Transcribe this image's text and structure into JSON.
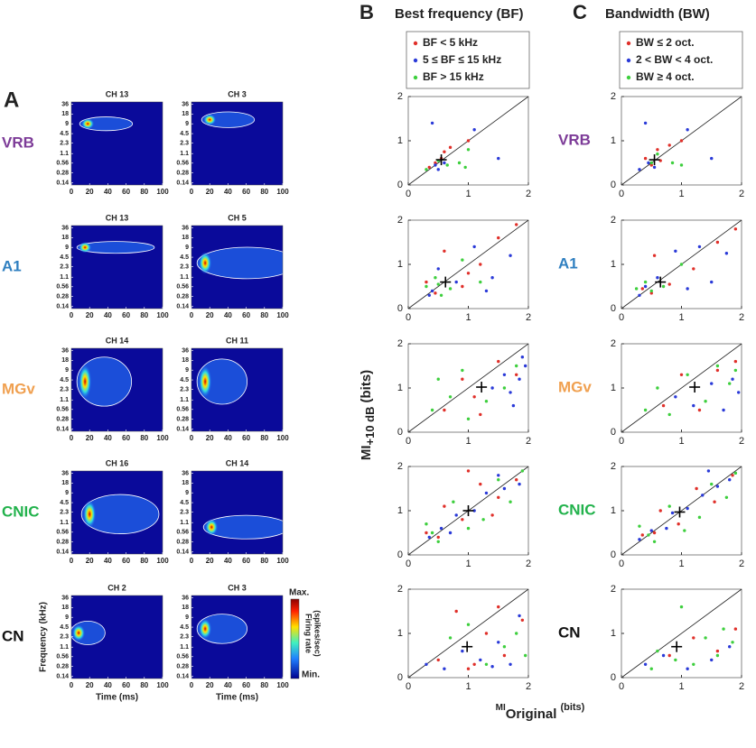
{
  "panel_labels": [
    "A",
    "B",
    "C"
  ],
  "axis_labels": {
    "y": {
      "main": "MI",
      "sub": "+10 dB",
      "unit": "(bits)"
    },
    "x": {
      "pre": "MI",
      "main": "Original",
      "unit": "(bits)"
    }
  },
  "panel_a": {
    "ylabel": "Frequency (kHz)",
    "xlabel": "Time (ms)",
    "xlim": [
      0,
      100
    ],
    "xticks": [
      0,
      20,
      40,
      60,
      80,
      100
    ],
    "ylim": [
      0.12,
      42
    ],
    "yticks": [
      36,
      18,
      9,
      4.5,
      2.3,
      1.1,
      0.56,
      0.28,
      0.14
    ],
    "colorbar": {
      "max": "Max.",
      "min": "Min.",
      "label": [
        "Firing rate",
        "(spikes/sec)"
      ]
    },
    "rows": [
      {
        "region": "VRB",
        "color": "#7d3c98",
        "maps": [
          {
            "title": "CH 13",
            "peak_time": 18,
            "peak_freq": 9,
            "time_extent": 12,
            "freq_extent": 0.7
          },
          {
            "title": "CH 3",
            "peak_time": 20,
            "peak_freq": 12,
            "time_extent": 8,
            "freq_extent": 0.8
          }
        ]
      },
      {
        "region": "A1",
        "color": "#2f7fc0",
        "maps": [
          {
            "title": "CH 13",
            "peak_time": 15,
            "peak_freq": 9,
            "time_extent": 45,
            "freq_extent": 0.6
          },
          {
            "title": "CH 5",
            "peak_time": 15,
            "peak_freq": 3,
            "time_extent": 70,
            "freq_extent": 1.6
          }
        ]
      },
      {
        "region": "MGv",
        "color": "#f0a050",
        "maps": [
          {
            "title": "CH 14",
            "peak_time": 15,
            "peak_freq": 4,
            "time_extent": 20,
            "freq_extent": 2.5
          },
          {
            "title": "CH 11",
            "peak_time": 15,
            "peak_freq": 4,
            "time_extent": 15,
            "freq_extent": 2.3
          }
        ]
      },
      {
        "region": "CNIC",
        "color": "#22b24c",
        "maps": [
          {
            "title": "CH 16",
            "peak_time": 20,
            "peak_freq": 2,
            "time_extent": 35,
            "freq_extent": 2
          },
          {
            "title": "CH 14",
            "peak_time": 22,
            "peak_freq": 0.8,
            "time_extent": 40,
            "freq_extent": 1.2
          }
        ]
      },
      {
        "region": "CN",
        "color": "#111111",
        "maps": [
          {
            "title": "CH 2",
            "peak_time": 8,
            "peak_freq": 3,
            "time_extent": 12,
            "freq_extent": 1.2
          },
          {
            "title": "CH 3",
            "peak_time": 15,
            "peak_freq": 4,
            "time_extent": 15,
            "freq_extent": 1.5
          }
        ]
      }
    ]
  },
  "chart_data": [
    {
      "type": "scatter",
      "title": "Best frequency (BF)",
      "xlim": [
        0,
        2
      ],
      "ylim": [
        0,
        2
      ],
      "xticks": [
        0,
        1,
        2
      ],
      "yticks": [
        0,
        1,
        2
      ],
      "median": {
        "x": 0.55,
        "y": 0.57
      },
      "series": [
        {
          "name": "BF < 5 kHz",
          "color": "#e0302a",
          "x": [
            0.45,
            0.6,
            0.7,
            1.0,
            0.35,
            0.55
          ],
          "y": [
            0.5,
            0.75,
            0.85,
            1.0,
            0.4,
            0.6
          ]
        },
        {
          "name": "5 ≤ BF ≤ 15 kHz",
          "color": "#2a3ad8",
          "x": [
            0.4,
            0.5,
            0.6,
            1.1,
            1.5,
            0.45
          ],
          "y": [
            1.4,
            0.35,
            0.5,
            1.25,
            0.6,
            0.45
          ]
        },
        {
          "name": "BF > 15 kHz",
          "color": "#3ecf3e",
          "x": [
            0.5,
            0.85,
            1.0,
            0.65,
            0.95,
            0.3
          ],
          "y": [
            0.55,
            0.5,
            0.8,
            0.45,
            0.4,
            0.35
          ]
        }
      ]
    },
    {
      "type": "scatter",
      "xlim": [
        0,
        2
      ],
      "ylim": [
        0,
        2
      ],
      "xticks": [
        0,
        1,
        2
      ],
      "yticks": [
        0,
        1,
        2
      ],
      "median": {
        "x": 0.62,
        "y": 0.6
      },
      "series": [
        {
          "color": "#e0302a",
          "x": [
            0.3,
            0.6,
            0.9,
            1.2,
            1.5,
            1.8,
            0.45,
            1.0
          ],
          "y": [
            0.6,
            1.3,
            0.5,
            1.0,
            1.6,
            1.9,
            0.35,
            0.8
          ]
        },
        {
          "color": "#2a3ad8",
          "x": [
            0.4,
            0.5,
            0.8,
            1.1,
            1.4,
            1.7,
            0.35,
            1.3
          ],
          "y": [
            0.4,
            0.9,
            0.6,
            1.4,
            0.7,
            1.2,
            0.3,
            0.4
          ]
        },
        {
          "color": "#3ecf3e",
          "x": [
            0.3,
            0.45,
            0.55,
            0.7,
            0.9,
            1.2,
            0.5
          ],
          "y": [
            0.5,
            0.7,
            0.3,
            0.45,
            1.1,
            0.6,
            0.55
          ]
        }
      ]
    },
    {
      "type": "scatter",
      "xlim": [
        0,
        2
      ],
      "ylim": [
        0,
        2
      ],
      "xticks": [
        0,
        1,
        2
      ],
      "yticks": [
        0,
        1,
        2
      ],
      "median": {
        "x": 1.22,
        "y": 1.02
      },
      "series": [
        {
          "color": "#e0302a",
          "x": [
            0.6,
            0.9,
            1.2,
            1.5,
            1.8,
            1.1
          ],
          "y": [
            0.5,
            1.2,
            0.4,
            1.6,
            1.3,
            0.8
          ]
        },
        {
          "color": "#2a3ad8",
          "x": [
            1.4,
            1.6,
            1.75,
            1.9,
            1.85,
            1.7,
            1.95
          ],
          "y": [
            1.0,
            1.3,
            0.6,
            1.7,
            1.2,
            0.9,
            1.5
          ]
        },
        {
          "color": "#3ecf3e",
          "x": [
            0.4,
            0.7,
            0.9,
            1.0,
            1.3,
            1.6,
            0.5,
            1.8
          ],
          "y": [
            0.5,
            0.8,
            1.4,
            0.3,
            0.7,
            1.0,
            1.2,
            1.5
          ]
        }
      ]
    },
    {
      "type": "scatter",
      "xlim": [
        0,
        2
      ],
      "ylim": [
        0,
        2
      ],
      "xticks": [
        0,
        1,
        2
      ],
      "yticks": [
        0,
        1,
        2
      ],
      "median": {
        "x": 1.0,
        "y": 1.0
      },
      "series": [
        {
          "color": "#e0302a",
          "x": [
            0.3,
            0.6,
            0.9,
            1.2,
            1.5,
            1.8,
            0.5,
            1.0,
            1.4
          ],
          "y": [
            0.5,
            1.1,
            0.8,
            1.6,
            1.3,
            1.7,
            0.4,
            1.9,
            0.9
          ]
        },
        {
          "color": "#2a3ad8",
          "x": [
            0.35,
            0.55,
            0.8,
            1.1,
            1.3,
            1.6,
            1.85,
            0.7,
            1.5
          ],
          "y": [
            0.4,
            0.6,
            0.9,
            1.0,
            1.4,
            1.5,
            1.6,
            0.5,
            1.8
          ]
        },
        {
          "color": "#3ecf3e",
          "x": [
            0.3,
            0.5,
            0.75,
            1.0,
            1.25,
            1.5,
            1.7,
            1.9,
            0.4
          ],
          "y": [
            0.7,
            0.3,
            1.2,
            0.6,
            0.8,
            1.7,
            1.2,
            1.9,
            0.5
          ]
        }
      ]
    },
    {
      "type": "scatter",
      "xlim": [
        0,
        2
      ],
      "ylim": [
        0,
        2
      ],
      "xticks": [
        0,
        1,
        2
      ],
      "yticks": [
        0,
        1,
        2
      ],
      "median": {
        "x": 0.98,
        "y": 0.7
      },
      "series": [
        {
          "color": "#e0302a",
          "x": [
            0.5,
            0.8,
            1.1,
            1.3,
            1.6,
            1.9,
            1.0,
            1.5
          ],
          "y": [
            0.4,
            1.5,
            0.3,
            1.0,
            0.5,
            1.3,
            0.2,
            1.6
          ]
        },
        {
          "color": "#2a3ad8",
          "x": [
            0.3,
            0.6,
            0.9,
            1.2,
            1.5,
            1.7,
            1.85,
            1.4
          ],
          "y": [
            0.3,
            0.2,
            0.6,
            0.4,
            0.8,
            0.3,
            1.4,
            0.25
          ]
        },
        {
          "color": "#3ecf3e",
          "x": [
            0.7,
            1.0,
            1.3,
            1.6,
            1.8,
            1.95
          ],
          "y": [
            0.9,
            1.2,
            0.3,
            0.7,
            1.0,
            0.5
          ]
        }
      ]
    },
    {
      "type": "scatter",
      "title": "Bandwidth (BW)",
      "xlim": [
        0,
        2
      ],
      "ylim": [
        0,
        2
      ],
      "xticks": [
        0,
        1,
        2
      ],
      "yticks": [
        0,
        1,
        2
      ],
      "median": {
        "x": 0.55,
        "y": 0.57
      },
      "series": [
        {
          "name": "BW ≤ 2 oct.",
          "color": "#e0302a",
          "x": [
            0.4,
            0.6,
            0.8,
            1.0,
            0.5,
            0.65
          ],
          "y": [
            0.6,
            0.8,
            0.9,
            1.0,
            0.45,
            0.55
          ]
        },
        {
          "name": "2 < BW < 4 oct.",
          "color": "#2a3ad8",
          "x": [
            0.4,
            0.55,
            1.1,
            1.5,
            0.45,
            0.3
          ],
          "y": [
            1.4,
            0.4,
            1.25,
            0.6,
            0.5,
            0.35
          ]
        },
        {
          "name": "BW ≥ 4 oct.",
          "color": "#3ecf3e",
          "x": [
            0.5,
            0.85,
            1.0,
            0.6
          ],
          "y": [
            0.5,
            0.5,
            0.45,
            0.7
          ]
        }
      ]
    },
    {
      "type": "scatter",
      "xlim": [
        0,
        2
      ],
      "ylim": [
        0,
        2
      ],
      "xticks": [
        0,
        1,
        2
      ],
      "yticks": [
        0,
        1,
        2
      ],
      "median": {
        "x": 0.65,
        "y": 0.6
      },
      "series": [
        {
          "color": "#e0302a",
          "x": [
            0.35,
            0.55,
            0.8,
            1.2,
            1.6,
            1.9,
            0.5
          ],
          "y": [
            0.45,
            1.2,
            0.55,
            0.9,
            1.5,
            1.8,
            0.35
          ]
        },
        {
          "color": "#2a3ad8",
          "x": [
            0.4,
            0.6,
            0.9,
            1.3,
            1.5,
            1.75,
            0.3,
            1.1
          ],
          "y": [
            0.5,
            0.7,
            1.3,
            1.4,
            0.6,
            1.25,
            0.3,
            0.45
          ]
        },
        {
          "color": "#3ecf3e",
          "x": [
            0.4,
            0.5,
            0.7,
            1.0,
            0.25
          ],
          "y": [
            0.6,
            0.4,
            0.5,
            1.0,
            0.45
          ]
        }
      ]
    },
    {
      "type": "scatter",
      "xlim": [
        0,
        2
      ],
      "ylim": [
        0,
        2
      ],
      "xticks": [
        0,
        1,
        2
      ],
      "yticks": [
        0,
        1,
        2
      ],
      "median": {
        "x": 1.22,
        "y": 1.02
      },
      "series": [
        {
          "color": "#e0302a",
          "x": [
            0.7,
            1.0,
            1.3,
            1.6,
            1.9
          ],
          "y": [
            0.6,
            1.3,
            0.5,
            1.4,
            1.6
          ]
        },
        {
          "color": "#2a3ad8",
          "x": [
            0.9,
            1.2,
            1.5,
            1.7,
            1.85,
            1.95
          ],
          "y": [
            0.8,
            0.6,
            1.1,
            0.5,
            1.2,
            0.9
          ]
        },
        {
          "color": "#3ecf3e",
          "x": [
            0.4,
            0.6,
            0.8,
            1.1,
            1.4,
            1.6,
            1.8,
            1.9
          ],
          "y": [
            0.5,
            1.0,
            0.4,
            1.3,
            0.7,
            1.5,
            1.1,
            1.4
          ]
        }
      ]
    },
    {
      "type": "scatter",
      "xlim": [
        0,
        2
      ],
      "ylim": [
        0,
        2
      ],
      "xticks": [
        0,
        1,
        2
      ],
      "yticks": [
        0,
        1,
        2
      ],
      "median": {
        "x": 0.97,
        "y": 0.97
      },
      "series": [
        {
          "color": "#e0302a",
          "x": [
            0.35,
            0.65,
            0.95,
            1.25,
            1.55,
            1.85,
            0.55
          ],
          "y": [
            0.45,
            1.0,
            0.7,
            1.5,
            1.2,
            1.8,
            0.5
          ]
        },
        {
          "color": "#2a3ad8",
          "x": [
            0.3,
            0.5,
            0.85,
            1.1,
            1.35,
            1.6,
            1.8,
            0.75,
            1.45
          ],
          "y": [
            0.35,
            0.55,
            0.95,
            1.05,
            1.35,
            1.55,
            1.7,
            0.6,
            1.9
          ]
        },
        {
          "color": "#3ecf3e",
          "x": [
            0.3,
            0.55,
            0.8,
            1.05,
            1.3,
            1.5,
            1.75,
            1.9,
            0.45
          ],
          "y": [
            0.65,
            0.3,
            1.1,
            0.55,
            0.85,
            1.6,
            1.3,
            1.85,
            0.45
          ]
        }
      ]
    },
    {
      "type": "scatter",
      "xlim": [
        0,
        2
      ],
      "ylim": [
        0,
        2
      ],
      "xticks": [
        0,
        1,
        2
      ],
      "yticks": [
        0,
        1,
        2
      ],
      "median": {
        "x": 0.92,
        "y": 0.7
      },
      "series": [
        {
          "color": "#e0302a",
          "x": [
            0.8,
            1.2,
            1.6,
            1.9
          ],
          "y": [
            0.5,
            0.9,
            0.6,
            1.1
          ]
        },
        {
          "color": "#2a3ad8",
          "x": [
            0.4,
            0.7,
            1.1,
            1.5,
            1.8
          ],
          "y": [
            0.3,
            0.5,
            0.2,
            0.4,
            0.7
          ]
        },
        {
          "color": "#3ecf3e",
          "x": [
            0.6,
            0.9,
            1.0,
            1.2,
            1.4,
            1.6,
            1.7,
            1.85,
            0.5
          ],
          "y": [
            0.6,
            0.4,
            1.6,
            0.3,
            0.9,
            0.5,
            1.1,
            0.8,
            0.2
          ]
        }
      ]
    }
  ]
}
